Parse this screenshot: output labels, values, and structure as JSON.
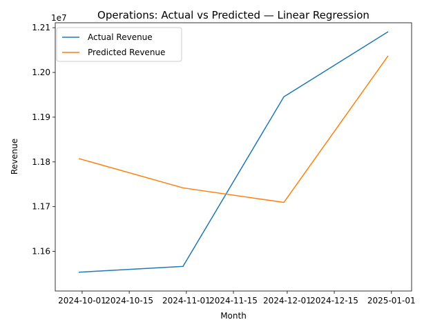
{
  "chart_data": {
    "type": "line",
    "title": "Operations: Actual vs Predicted — Linear Regression",
    "xlabel": "Month",
    "ylabel": "Revenue",
    "y_offset_label": "1e7",
    "x": [
      "2024-09-30",
      "2024-10-31",
      "2024-11-30",
      "2024-12-31"
    ],
    "series": [
      {
        "name": "Actual Revenue",
        "color": "#1f77b4",
        "values": [
          11.5535,
          11.5665,
          11.9455,
          12.091
        ]
      },
      {
        "name": "Predicted Revenue",
        "color": "#ff7f0e",
        "values": [
          11.8075,
          11.742,
          11.7095,
          12.037
        ]
      }
    ],
    "xticks": [
      {
        "date": "2024-10-01",
        "label": "2024-10-01"
      },
      {
        "date": "2024-10-15",
        "label": "2024-10-15"
      },
      {
        "date": "2024-11-01",
        "label": "2024-11-01"
      },
      {
        "date": "2024-11-15",
        "label": "2024-11-15"
      },
      {
        "date": "2024-12-01",
        "label": "2024-12-01"
      },
      {
        "date": "2024-12-15",
        "label": "2024-12-15"
      },
      {
        "date": "2025-01-01",
        "label": "2025-01-01"
      }
    ],
    "yticks": [
      {
        "value": 11.6,
        "label": "1.16"
      },
      {
        "value": 11.7,
        "label": "1.17"
      },
      {
        "value": 11.8,
        "label": "1.18"
      },
      {
        "value": 11.9,
        "label": "1.19"
      },
      {
        "value": 12.0,
        "label": "1.20"
      },
      {
        "value": 12.1,
        "label": "1.21"
      }
    ],
    "xlim": [
      "2024-09-23",
      "2025-01-07"
    ],
    "ylim": [
      11.5115,
      12.111
    ],
    "grid": false,
    "legend_position": "top-left"
  }
}
